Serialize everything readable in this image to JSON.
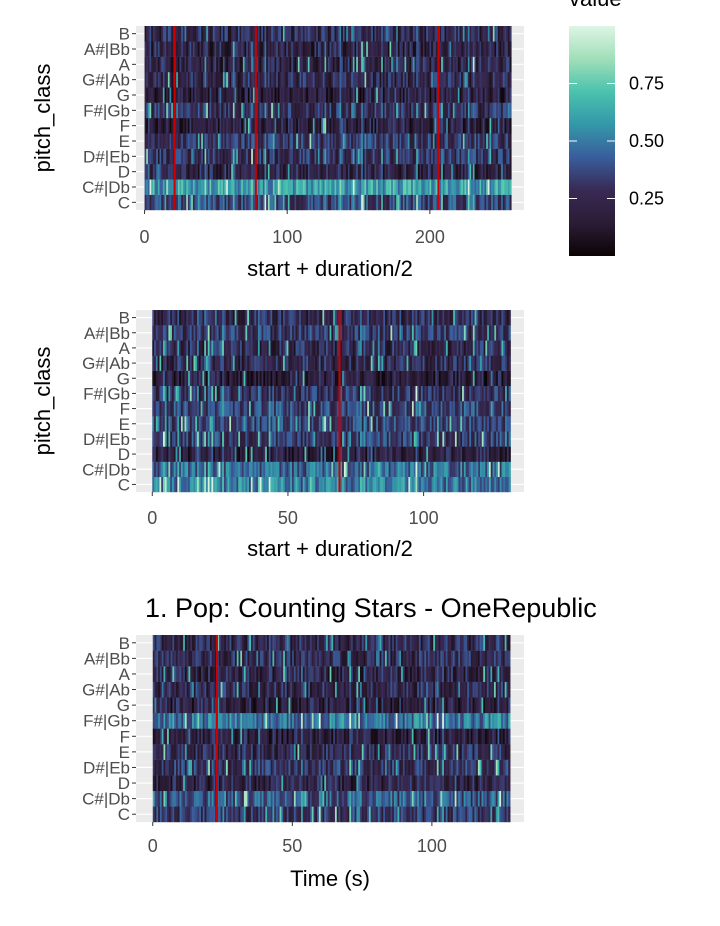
{
  "chart_data": [
    {
      "type": "heatmap",
      "title": "",
      "xlabel": "start + duration/2",
      "ylabel": "pitch_class",
      "xlim": [
        -6,
        266
      ],
      "x_ticks": [
        0,
        100,
        200
      ],
      "x_tick_labels": [
        "0",
        "100",
        "200"
      ],
      "x_range": [
        0,
        257
      ],
      "y_categories": [
        "C",
        "C#|Db",
        "D",
        "D#|Eb",
        "E",
        "F",
        "F#|Gb",
        "G",
        "G#|Ab",
        "A",
        "A#|Bb",
        "B"
      ],
      "vlines": [
        21,
        78,
        206
      ],
      "n_columns": 220,
      "row_means": [
        0.35,
        0.6,
        0.22,
        0.28,
        0.3,
        0.2,
        0.28,
        0.18,
        0.25,
        0.22,
        0.22,
        0.25
      ],
      "seed": 11
    },
    {
      "type": "heatmap",
      "title": "",
      "xlabel": "start + duration/2",
      "ylabel": "pitch_class",
      "xlim": [
        -6,
        137
      ],
      "x_ticks": [
        0,
        50,
        100
      ],
      "x_tick_labels": [
        "0",
        "50",
        "100"
      ],
      "x_range": [
        0,
        132
      ],
      "y_categories": [
        "C",
        "C#|Db",
        "D",
        "D#|Eb",
        "E",
        "F",
        "F#|Gb",
        "G",
        "G#|Ab",
        "A",
        "A#|Bb",
        "B"
      ],
      "vlines": [
        69
      ],
      "n_columns": 200,
      "row_means": [
        0.5,
        0.45,
        0.2,
        0.32,
        0.35,
        0.35,
        0.28,
        0.18,
        0.25,
        0.25,
        0.3,
        0.25
      ],
      "seed": 23
    },
    {
      "type": "heatmap",
      "title": "1. Pop: Counting Stars - OneRepublic",
      "xlabel": "Time (s)",
      "ylabel": "",
      "xlim": [
        -6,
        133
      ],
      "x_ticks": [
        0,
        50,
        100
      ],
      "x_tick_labels": [
        "0",
        "50",
        "100"
      ],
      "x_range": [
        0,
        128
      ],
      "y_categories": [
        "C",
        "C#|Db",
        "D",
        "D#|Eb",
        "E",
        "F",
        "F#|Gb",
        "G",
        "G#|Ab",
        "A",
        "A#|Bb",
        "B"
      ],
      "vlines": [
        23
      ],
      "n_columns": 200,
      "row_means": [
        0.3,
        0.4,
        0.22,
        0.3,
        0.25,
        0.2,
        0.5,
        0.2,
        0.25,
        0.22,
        0.25,
        0.25
      ],
      "seed": 37
    }
  ],
  "legend": {
    "title": "value",
    "range": [
      0,
      1
    ],
    "ticks": [
      0.25,
      0.5,
      0.75
    ],
    "tick_labels": [
      "0.25",
      "0.50",
      "0.75"
    ],
    "colors": [
      "#0b0405",
      "#2b1c35",
      "#382a54",
      "#395d9c",
      "#3497a9",
      "#4bc2ad",
      "#a0dfb9",
      "#def5e5"
    ]
  },
  "colors": {
    "vline": "#cc0000",
    "panel_bg": "#ebebeb",
    "grid": "#ffffff"
  }
}
